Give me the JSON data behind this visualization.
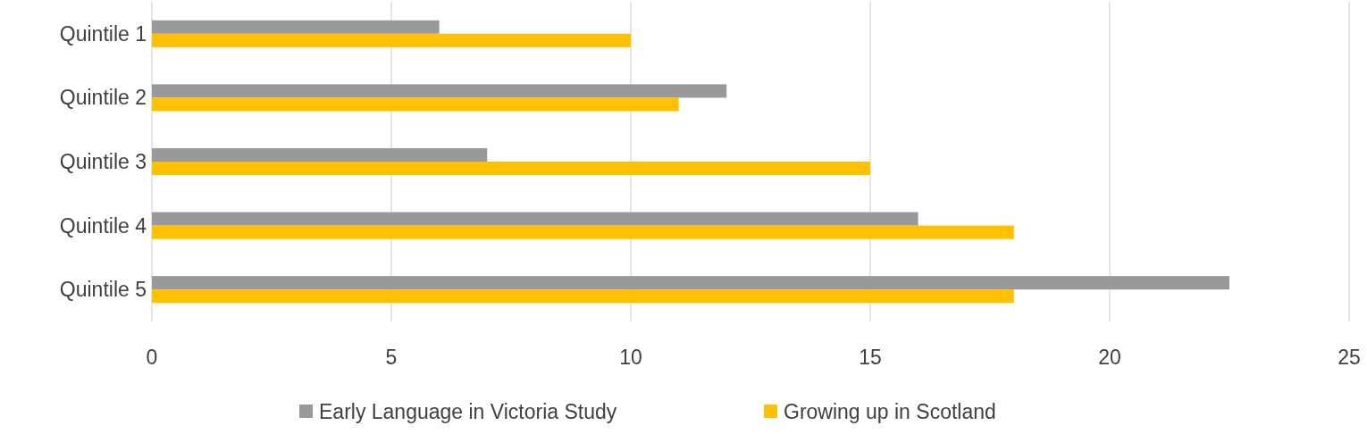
{
  "chart_data": {
    "type": "bar",
    "orientation": "horizontal",
    "categories": [
      "Quintile 1",
      "Quintile 2",
      "Quintile 3",
      "Quintile 4",
      "Quintile 5"
    ],
    "series": [
      {
        "name": "Early Language in Victoria Study",
        "color": "#999999",
        "values": [
          6,
          12,
          7,
          16,
          22.5
        ]
      },
      {
        "name": "Growing up in Scotland",
        "color": "#ffc000",
        "values": [
          10,
          11,
          15,
          18,
          18
        ]
      }
    ],
    "xlim": [
      0,
      25
    ],
    "xticks": [
      0,
      5,
      10,
      15,
      20,
      25
    ],
    "grid": "x",
    "legend": "bottom"
  }
}
